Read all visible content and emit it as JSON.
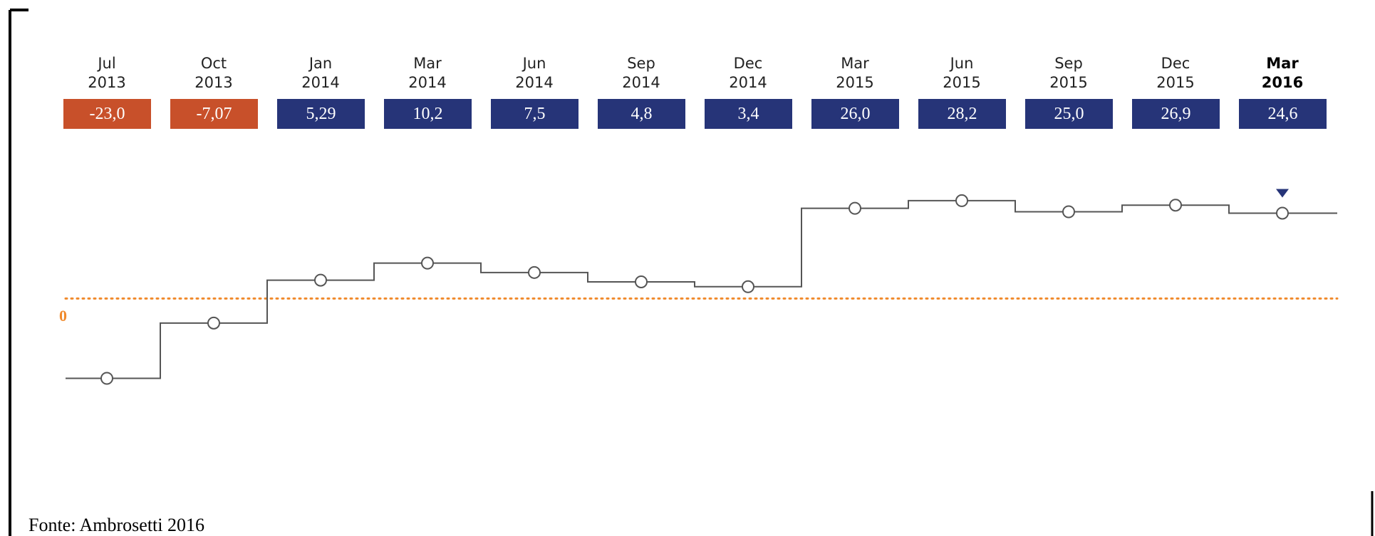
{
  "chart_data": {
    "type": "step",
    "categories": [
      "Jul 2013",
      "Oct 2013",
      "Jan 2014",
      "Mar 2014",
      "Jun 2014",
      "Sep 2014",
      "Dec 2014",
      "Mar 2015",
      "Jun 2015",
      "Sep 2015",
      "Dec 2015",
      "Mar 2016"
    ],
    "values": [
      -23.0,
      -7.07,
      5.29,
      10.2,
      7.5,
      4.8,
      3.4,
      26.0,
      28.2,
      25.0,
      26.9,
      24.6
    ],
    "value_labels": [
      "-23,0",
      "-7,07",
      "5,29",
      "10,2",
      "7,5",
      "4,8",
      "3,4",
      "26,0",
      "28,2",
      "25,0",
      "26,9",
      "24,6"
    ],
    "color": "#263478",
    "negative_color": "#c8502a",
    "line_color": "#555555",
    "zero_line_color": "#f08a2c",
    "ylim": [
      -35,
      45
    ],
    "yticks": [
      0
    ],
    "source": "Fonte: Ambrosetti 2016"
  }
}
